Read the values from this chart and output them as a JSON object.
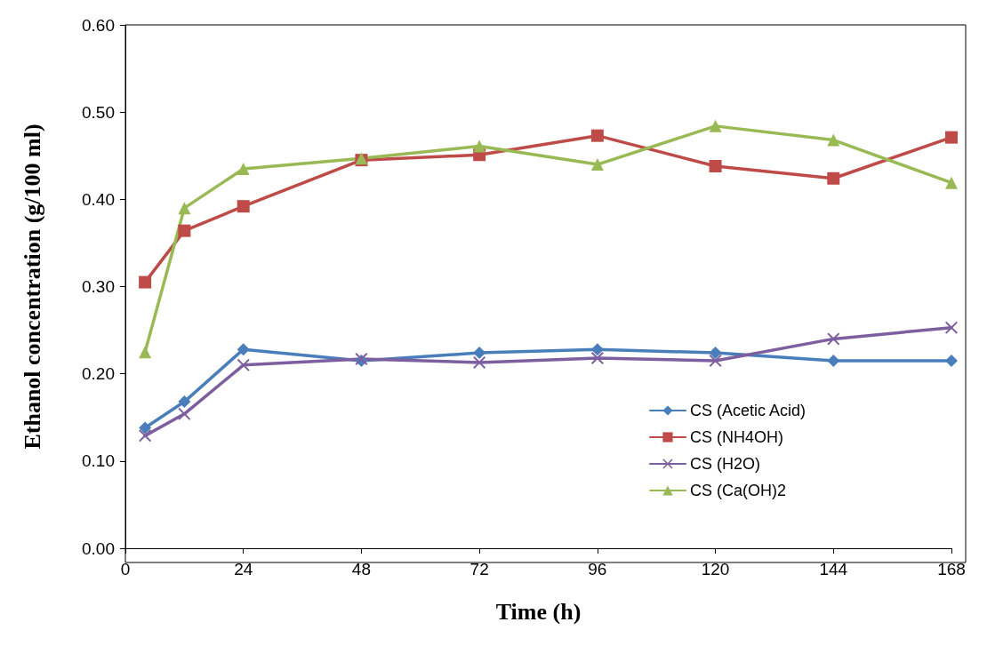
{
  "chart_data": {
    "type": "line",
    "xlabel": "Time (h)",
    "ylabel": "Ethanol concentration (g/100 ml)",
    "xlim": [
      0,
      168
    ],
    "xticks": [
      0,
      24,
      48,
      72,
      96,
      120,
      144,
      168
    ],
    "ylim": [
      0,
      0.6
    ],
    "yticks": [
      {
        "value": 0,
        "label": "0.00"
      },
      {
        "value": 0.1,
        "label": "0.10"
      },
      {
        "value": 0.2,
        "label": "0.20"
      },
      {
        "value": 0.3,
        "label": "0.30"
      },
      {
        "value": 0.4,
        "label": "0.40"
      },
      {
        "value": 0.5,
        "label": "0.50"
      },
      {
        "value": 0.6,
        "label": "0.60"
      }
    ],
    "x": [
      4,
      12,
      24,
      48,
      72,
      96,
      120,
      144,
      168
    ],
    "grid": false,
    "legend": "right",
    "series": [
      {
        "name": "CS (Acetic Acid)",
        "color": "#4a7ebb",
        "marker": "diamond",
        "values": [
          0.138,
          0.168,
          0.228,
          0.215,
          0.224,
          0.228,
          0.224,
          0.215,
          0.215
        ]
      },
      {
        "name": "CS (NH4OH)",
        "color": "#be4b48",
        "marker": "square",
        "values": [
          0.305,
          0.364,
          0.392,
          0.445,
          0.451,
          0.473,
          0.438,
          0.424,
          0.471
        ]
      },
      {
        "name": "CS (H2O)",
        "color": "#7d5fa0",
        "marker": "cross",
        "values": [
          0.129,
          0.154,
          0.21,
          0.217,
          0.213,
          0.218,
          0.215,
          0.24,
          0.253
        ]
      },
      {
        "name": "CS (Ca(OH)2",
        "color": "#98b954",
        "marker": "triangle",
        "values": [
          0.225,
          0.39,
          0.435,
          0.447,
          0.461,
          0.44,
          0.484,
          0.468,
          0.419
        ]
      }
    ]
  }
}
